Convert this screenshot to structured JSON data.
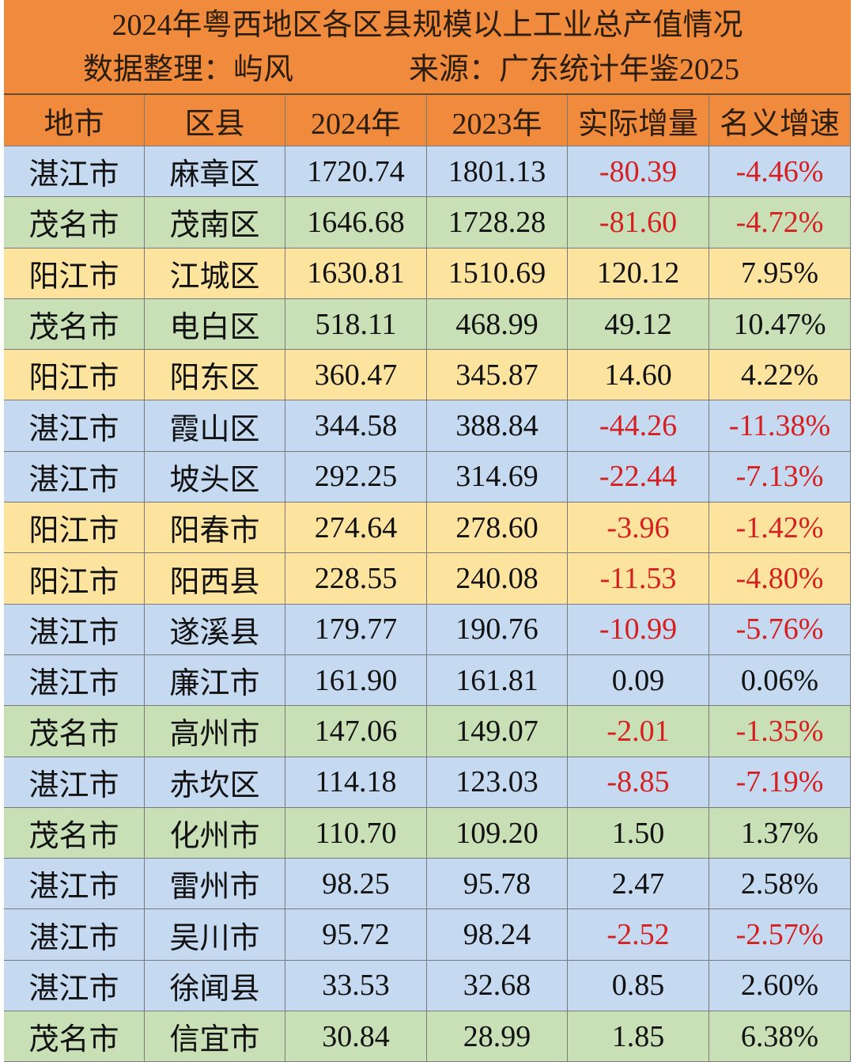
{
  "header": {
    "title": "2024年粤西地区各区县规模以上工业总产值情况",
    "compiler": "数据整理：屿风",
    "source": "来源：广东统计年鉴2025"
  },
  "table": {
    "columns": [
      "地市",
      "区县",
      "2024年",
      "2023年",
      "实际增量",
      "名义增速"
    ],
    "rows": [
      {
        "cells": [
          "湛江市",
          "麻章区",
          "1720.74",
          "1801.13",
          "-80.39",
          "-4.46%"
        ],
        "color": "#c5d9f1"
      },
      {
        "cells": [
          "茂名市",
          "茂南区",
          "1646.68",
          "1728.28",
          "-81.60",
          "-4.72%"
        ],
        "color": "#c9e0b6"
      },
      {
        "cells": [
          "阳江市",
          "江城区",
          "1630.81",
          "1510.69",
          "120.12",
          "7.95%"
        ],
        "color": "#fde49e"
      },
      {
        "cells": [
          "茂名市",
          "电白区",
          "518.11",
          "468.99",
          "49.12",
          "10.47%"
        ],
        "color": "#c9e0b6"
      },
      {
        "cells": [
          "阳江市",
          "阳东区",
          "360.47",
          "345.87",
          "14.60",
          "4.22%"
        ],
        "color": "#fde49e"
      },
      {
        "cells": [
          "湛江市",
          "霞山区",
          "344.58",
          "388.84",
          "-44.26",
          "-11.38%"
        ],
        "color": "#c5d9f1"
      },
      {
        "cells": [
          "湛江市",
          "坡头区",
          "292.25",
          "314.69",
          "-22.44",
          "-7.13%"
        ],
        "color": "#c5d9f1"
      },
      {
        "cells": [
          "阳江市",
          "阳春市",
          "274.64",
          "278.60",
          "-3.96",
          "-1.42%"
        ],
        "color": "#fde49e"
      },
      {
        "cells": [
          "阳江市",
          "阳西县",
          "228.55",
          "240.08",
          "-11.53",
          "-4.80%"
        ],
        "color": "#fde49e"
      },
      {
        "cells": [
          "湛江市",
          "遂溪县",
          "179.77",
          "190.76",
          "-10.99",
          "-5.76%"
        ],
        "color": "#c5d9f1"
      },
      {
        "cells": [
          "湛江市",
          "廉江市",
          "161.90",
          "161.81",
          "0.09",
          "0.06%"
        ],
        "color": "#c5d9f1"
      },
      {
        "cells": [
          "茂名市",
          "高州市",
          "147.06",
          "149.07",
          "-2.01",
          "-1.35%"
        ],
        "color": "#c9e0b6"
      },
      {
        "cells": [
          "湛江市",
          "赤坎区",
          "114.18",
          "123.03",
          "-8.85",
          "-7.19%"
        ],
        "color": "#c5d9f1"
      },
      {
        "cells": [
          "茂名市",
          "化州市",
          "110.70",
          "109.20",
          "1.50",
          "1.37%"
        ],
        "color": "#c9e0b6"
      },
      {
        "cells": [
          "湛江市",
          "雷州市",
          "98.25",
          "95.78",
          "2.47",
          "2.58%"
        ],
        "color": "#c5d9f1"
      },
      {
        "cells": [
          "湛江市",
          "吴川市",
          "95.72",
          "98.24",
          "-2.52",
          "-2.57%"
        ],
        "color": "#c5d9f1"
      },
      {
        "cells": [
          "湛江市",
          "徐闻县",
          "33.53",
          "32.68",
          "0.85",
          "2.60%"
        ],
        "color": "#c5d9f1"
      },
      {
        "cells": [
          "茂名市",
          "信宜市",
          "30.84",
          "28.99",
          "1.85",
          "6.38%"
        ],
        "color": "#c9e0b6"
      }
    ]
  },
  "negative_color": "#d42020"
}
